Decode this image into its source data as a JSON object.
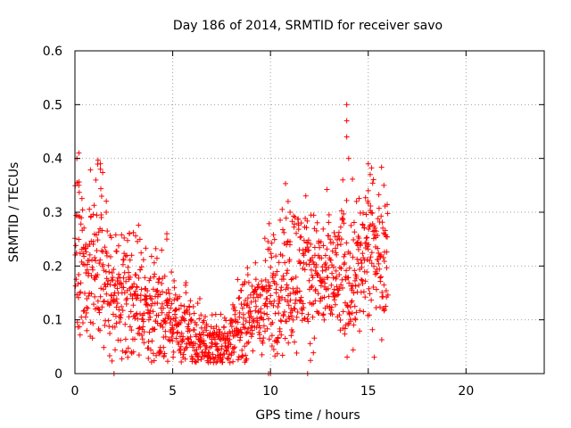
{
  "chart_data": {
    "type": "scatter",
    "title": "Day 186 of 2014, SRMTID for receiver savo",
    "xlabel": "GPS time / hours",
    "ylabel": "SRMTID / TECUs",
    "xlim": [
      0,
      24
    ],
    "ylim": [
      0,
      0.6
    ],
    "xticks": [
      0,
      5,
      10,
      15,
      20
    ],
    "xtick_labels": [
      "0",
      "5",
      "10",
      "15",
      "20"
    ],
    "yticks": [
      0,
      0.1,
      0.2,
      0.3,
      0.4,
      0.5,
      0.6
    ],
    "ytick_labels": [
      "0",
      "0.1",
      "0.2",
      "0.3",
      "0.4",
      "0.5",
      "0.6"
    ],
    "grid": true,
    "marker": "plus",
    "color": "#ff0000",
    "series": [
      {
        "name": "SRMTID",
        "trend_x": [
          0,
          0.5,
          1,
          1.5,
          2,
          2.5,
          3,
          3.5,
          4,
          4.5,
          5,
          5.5,
          6,
          6.5,
          7,
          7.5,
          8,
          8.5,
          9,
          9.5,
          10,
          10.5,
          11,
          11.5,
          12,
          12.5,
          13,
          13.5,
          14,
          14.5,
          15,
          15.5,
          16
        ],
        "trend_y": [
          0.22,
          0.2,
          0.2,
          0.18,
          0.16,
          0.15,
          0.15,
          0.13,
          0.12,
          0.1,
          0.1,
          0.08,
          0.07,
          0.06,
          0.05,
          0.05,
          0.06,
          0.1,
          0.11,
          0.12,
          0.15,
          0.17,
          0.18,
          0.19,
          0.19,
          0.18,
          0.17,
          0.18,
          0.18,
          0.2,
          0.22,
          0.22,
          0.24
        ],
        "spread_y": [
          0.08,
          0.08,
          0.08,
          0.07,
          0.07,
          0.06,
          0.06,
          0.05,
          0.05,
          0.05,
          0.04,
          0.04,
          0.035,
          0.03,
          0.03,
          0.03,
          0.03,
          0.04,
          0.04,
          0.05,
          0.06,
          0.07,
          0.07,
          0.07,
          0.06,
          0.06,
          0.06,
          0.06,
          0.07,
          0.07,
          0.07,
          0.07,
          0.06
        ],
        "notable_points": [
          {
            "x": 0.2,
            "y": 0.41
          },
          {
            "x": 0.1,
            "y": 0.4
          },
          {
            "x": 1.3,
            "y": 0.39
          },
          {
            "x": 1.3,
            "y": 0.38
          },
          {
            "x": 0.2,
            "y": 0.35
          },
          {
            "x": 1.6,
            "y": 0.3
          },
          {
            "x": 4.7,
            "y": 0.26
          },
          {
            "x": 4.7,
            "y": 0.25
          },
          {
            "x": 7.2,
            "y": 0.11
          },
          {
            "x": 10.9,
            "y": 0.32
          },
          {
            "x": 11.0,
            "y": 0.3
          },
          {
            "x": 13.9,
            "y": 0.5
          },
          {
            "x": 13.9,
            "y": 0.47
          },
          {
            "x": 13.9,
            "y": 0.44
          },
          {
            "x": 14.0,
            "y": 0.4
          },
          {
            "x": 13.7,
            "y": 0.36
          },
          {
            "x": 15.0,
            "y": 0.39
          },
          {
            "x": 15.1,
            "y": 0.37
          },
          {
            "x": 15.0,
            "y": 0.34
          },
          {
            "x": 15.8,
            "y": 0.35
          },
          {
            "x": 14.4,
            "y": 0.32
          },
          {
            "x": 2.0,
            "y": 0.0
          },
          {
            "x": 9.9,
            "y": 0.0
          },
          {
            "x": 10.0,
            "y": 0.0
          },
          {
            "x": 11.9,
            "y": 0.0
          }
        ]
      }
    ]
  }
}
